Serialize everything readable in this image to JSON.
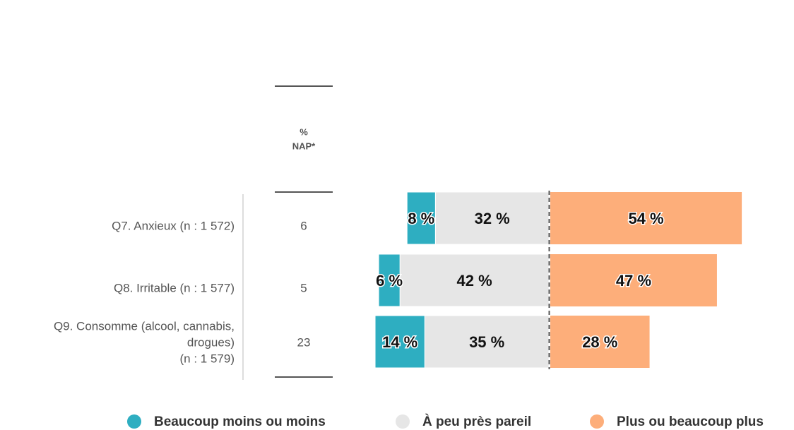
{
  "chart_data": {
    "type": "diverging-bar",
    "categories": [
      [
        "Q7. Anxieux (n : 1 572)"
      ],
      [
        "Q8. Irritable (n : 1 577)"
      ],
      [
        "Q9. Consomme (alcool, cannabis,",
        "drogues)",
        "(n : 1 579)"
      ]
    ],
    "nap_header": [
      "%",
      "NAP*"
    ],
    "nap_values": [
      6,
      5,
      23
    ],
    "series": [
      {
        "name": "Beaucoup moins ou moins",
        "color": "#2eaec1",
        "side": "left",
        "values": [
          8,
          6,
          14
        ],
        "value_labels": [
          "8 %",
          "6 %",
          "14 %"
        ]
      },
      {
        "name": "À peu près pareil",
        "color": "#e6e6e6",
        "side": "left",
        "values": [
          32,
          42,
          35
        ],
        "value_labels": [
          "32 %",
          "42 %",
          "35 %"
        ]
      },
      {
        "name": "Plus ou beaucoup plus",
        "color": "#fdae7a",
        "side": "right",
        "values": [
          54,
          47,
          28
        ],
        "value_labels": [
          "54 %",
          "47 %",
          "28 %"
        ]
      }
    ]
  }
}
